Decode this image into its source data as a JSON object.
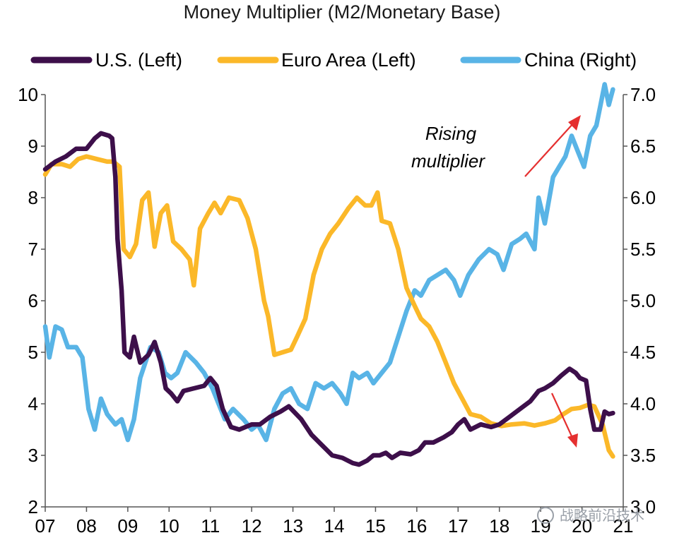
{
  "chart_data": {
    "type": "line",
    "title": "Money Multiplier (M2/Monetary Base)",
    "x_tick_labels": [
      "07",
      "08",
      "09",
      "10",
      "11",
      "12",
      "13",
      "14",
      "15",
      "16",
      "17",
      "18",
      "19",
      "20",
      "21"
    ],
    "x_range": [
      2007,
      2021
    ],
    "left_axis": {
      "range": [
        2,
        10
      ],
      "ticks": [
        "2",
        "3",
        "4",
        "5",
        "6",
        "7",
        "8",
        "9",
        "10"
      ]
    },
    "right_axis": {
      "range": [
        3.0,
        7.0
      ],
      "ticks": [
        "3.0",
        "3.5",
        "4.0",
        "4.5",
        "5.0",
        "5.5",
        "6.0",
        "6.5",
        "7.0"
      ]
    },
    "series": [
      {
        "name": "U.S. (Left)",
        "axis": "left",
        "color": "#3d0f4a",
        "points": [
          [
            2007.0,
            8.55
          ],
          [
            2007.25,
            8.7
          ],
          [
            2007.5,
            8.8
          ],
          [
            2007.75,
            8.95
          ],
          [
            2008.0,
            8.95
          ],
          [
            2008.2,
            9.15
          ],
          [
            2008.35,
            9.25
          ],
          [
            2008.55,
            9.2
          ],
          [
            2008.62,
            9.15
          ],
          [
            2008.7,
            8.4
          ],
          [
            2008.75,
            7.2
          ],
          [
            2008.85,
            6.2
          ],
          [
            2008.92,
            5.0
          ],
          [
            2009.05,
            4.9
          ],
          [
            2009.15,
            5.3
          ],
          [
            2009.3,
            4.8
          ],
          [
            2009.5,
            4.95
          ],
          [
            2009.65,
            5.2
          ],
          [
            2009.8,
            4.8
          ],
          [
            2009.92,
            4.3
          ],
          [
            2010.05,
            4.2
          ],
          [
            2010.2,
            4.05
          ],
          [
            2010.35,
            4.25
          ],
          [
            2010.6,
            4.3
          ],
          [
            2010.85,
            4.35
          ],
          [
            2011.0,
            4.5
          ],
          [
            2011.15,
            4.35
          ],
          [
            2011.3,
            3.9
          ],
          [
            2011.5,
            3.55
          ],
          [
            2011.7,
            3.5
          ],
          [
            2012.0,
            3.6
          ],
          [
            2012.2,
            3.6
          ],
          [
            2012.45,
            3.75
          ],
          [
            2012.7,
            3.85
          ],
          [
            2012.9,
            3.95
          ],
          [
            2013.2,
            3.7
          ],
          [
            2013.45,
            3.4
          ],
          [
            2013.7,
            3.2
          ],
          [
            2013.95,
            3.0
          ],
          [
            2014.2,
            2.95
          ],
          [
            2014.45,
            2.85
          ],
          [
            2014.6,
            2.82
          ],
          [
            2014.8,
            2.9
          ],
          [
            2014.95,
            3.0
          ],
          [
            2015.1,
            3.0
          ],
          [
            2015.25,
            3.05
          ],
          [
            2015.4,
            2.95
          ],
          [
            2015.6,
            3.05
          ],
          [
            2015.85,
            3.02
          ],
          [
            2016.05,
            3.1
          ],
          [
            2016.2,
            3.25
          ],
          [
            2016.4,
            3.25
          ],
          [
            2016.65,
            3.35
          ],
          [
            2016.85,
            3.45
          ],
          [
            2017.0,
            3.6
          ],
          [
            2017.15,
            3.7
          ],
          [
            2017.3,
            3.5
          ],
          [
            2017.55,
            3.6
          ],
          [
            2017.8,
            3.55
          ],
          [
            2018.0,
            3.6
          ],
          [
            2018.25,
            3.75
          ],
          [
            2018.5,
            3.9
          ],
          [
            2018.75,
            4.05
          ],
          [
            2018.95,
            4.25
          ],
          [
            2019.1,
            4.3
          ],
          [
            2019.3,
            4.4
          ],
          [
            2019.5,
            4.55
          ],
          [
            2019.7,
            4.68
          ],
          [
            2019.85,
            4.6
          ],
          [
            2019.95,
            4.5
          ],
          [
            2020.1,
            4.45
          ],
          [
            2020.2,
            3.9
          ],
          [
            2020.3,
            3.5
          ],
          [
            2020.45,
            3.5
          ],
          [
            2020.55,
            3.85
          ],
          [
            2020.65,
            3.8
          ],
          [
            2020.75,
            3.82
          ]
        ]
      },
      {
        "name": "Euro Area (Left)",
        "axis": "left",
        "color": "#fbb829",
        "points": [
          [
            2007.0,
            8.45
          ],
          [
            2007.15,
            8.65
          ],
          [
            2007.4,
            8.65
          ],
          [
            2007.6,
            8.6
          ],
          [
            2007.8,
            8.75
          ],
          [
            2008.0,
            8.8
          ],
          [
            2008.25,
            8.75
          ],
          [
            2008.5,
            8.7
          ],
          [
            2008.65,
            8.7
          ],
          [
            2008.8,
            8.6
          ],
          [
            2008.9,
            7.0
          ],
          [
            2009.05,
            6.85
          ],
          [
            2009.2,
            7.1
          ],
          [
            2009.35,
            7.95
          ],
          [
            2009.5,
            8.1
          ],
          [
            2009.65,
            7.05
          ],
          [
            2009.8,
            7.7
          ],
          [
            2009.95,
            7.85
          ],
          [
            2010.1,
            7.15
          ],
          [
            2010.3,
            7.0
          ],
          [
            2010.5,
            6.8
          ],
          [
            2010.6,
            6.3
          ],
          [
            2010.75,
            7.4
          ],
          [
            2010.95,
            7.7
          ],
          [
            2011.1,
            7.9
          ],
          [
            2011.25,
            7.7
          ],
          [
            2011.45,
            8.0
          ],
          [
            2011.7,
            7.95
          ],
          [
            2011.9,
            7.6
          ],
          [
            2012.1,
            7.0
          ],
          [
            2012.3,
            6.0
          ],
          [
            2012.4,
            5.7
          ],
          [
            2012.55,
            4.95
          ],
          [
            2012.75,
            5.0
          ],
          [
            2012.95,
            5.05
          ],
          [
            2013.1,
            5.3
          ],
          [
            2013.3,
            5.65
          ],
          [
            2013.5,
            6.5
          ],
          [
            2013.7,
            7.0
          ],
          [
            2013.9,
            7.3
          ],
          [
            2014.1,
            7.5
          ],
          [
            2014.35,
            7.8
          ],
          [
            2014.55,
            8.0
          ],
          [
            2014.75,
            7.85
          ],
          [
            2014.9,
            7.85
          ],
          [
            2015.05,
            8.1
          ],
          [
            2015.15,
            7.55
          ],
          [
            2015.35,
            7.5
          ],
          [
            2015.55,
            7.0
          ],
          [
            2015.75,
            6.25
          ],
          [
            2015.95,
            5.9
          ],
          [
            2016.1,
            5.65
          ],
          [
            2016.3,
            5.5
          ],
          [
            2016.5,
            5.2
          ],
          [
            2016.7,
            4.8
          ],
          [
            2016.9,
            4.4
          ],
          [
            2017.1,
            4.1
          ],
          [
            2017.3,
            3.8
          ],
          [
            2017.55,
            3.75
          ],
          [
            2017.8,
            3.62
          ],
          [
            2018.05,
            3.57
          ],
          [
            2018.3,
            3.6
          ],
          [
            2018.6,
            3.62
          ],
          [
            2018.85,
            3.58
          ],
          [
            2019.1,
            3.62
          ],
          [
            2019.35,
            3.68
          ],
          [
            2019.55,
            3.8
          ],
          [
            2019.75,
            3.9
          ],
          [
            2019.95,
            3.92
          ],
          [
            2020.15,
            3.98
          ],
          [
            2020.3,
            3.95
          ],
          [
            2020.5,
            3.6
          ],
          [
            2020.65,
            3.1
          ],
          [
            2020.75,
            2.98
          ]
        ]
      },
      {
        "name": "China (Right)",
        "axis": "right",
        "color": "#59b4e6",
        "points": [
          [
            2007.0,
            4.75
          ],
          [
            2007.1,
            4.45
          ],
          [
            2007.25,
            4.75
          ],
          [
            2007.4,
            4.72
          ],
          [
            2007.55,
            4.55
          ],
          [
            2007.75,
            4.55
          ],
          [
            2007.9,
            4.45
          ],
          [
            2008.05,
            3.95
          ],
          [
            2008.2,
            3.75
          ],
          [
            2008.35,
            4.05
          ],
          [
            2008.5,
            3.9
          ],
          [
            2008.7,
            3.8
          ],
          [
            2008.85,
            3.85
          ],
          [
            2009.0,
            3.65
          ],
          [
            2009.15,
            3.85
          ],
          [
            2009.3,
            4.25
          ],
          [
            2009.55,
            4.55
          ],
          [
            2009.75,
            4.5
          ],
          [
            2009.9,
            4.3
          ],
          [
            2010.05,
            4.25
          ],
          [
            2010.2,
            4.3
          ],
          [
            2010.4,
            4.5
          ],
          [
            2010.65,
            4.4
          ],
          [
            2010.85,
            4.3
          ],
          [
            2011.05,
            4.15
          ],
          [
            2011.2,
            4.0
          ],
          [
            2011.35,
            3.85
          ],
          [
            2011.55,
            3.95
          ],
          [
            2011.8,
            3.85
          ],
          [
            2012.0,
            3.75
          ],
          [
            2012.15,
            3.8
          ],
          [
            2012.35,
            3.65
          ],
          [
            2012.55,
            3.95
          ],
          [
            2012.75,
            4.1
          ],
          [
            2012.95,
            4.15
          ],
          [
            2013.15,
            4.0
          ],
          [
            2013.35,
            3.95
          ],
          [
            2013.55,
            4.2
          ],
          [
            2013.75,
            4.15
          ],
          [
            2013.95,
            4.2
          ],
          [
            2014.15,
            4.1
          ],
          [
            2014.3,
            4.0
          ],
          [
            2014.45,
            4.3
          ],
          [
            2014.6,
            4.25
          ],
          [
            2014.8,
            4.3
          ],
          [
            2014.95,
            4.2
          ],
          [
            2015.15,
            4.3
          ],
          [
            2015.35,
            4.4
          ],
          [
            2015.55,
            4.65
          ],
          [
            2015.75,
            4.9
          ],
          [
            2015.95,
            5.1
          ],
          [
            2016.1,
            5.05
          ],
          [
            2016.3,
            5.2
          ],
          [
            2016.5,
            5.25
          ],
          [
            2016.7,
            5.3
          ],
          [
            2016.9,
            5.2
          ],
          [
            2017.05,
            5.05
          ],
          [
            2017.25,
            5.25
          ],
          [
            2017.5,
            5.4
          ],
          [
            2017.75,
            5.5
          ],
          [
            2017.95,
            5.45
          ],
          [
            2018.1,
            5.3
          ],
          [
            2018.3,
            5.55
          ],
          [
            2018.5,
            5.6
          ],
          [
            2018.65,
            5.65
          ],
          [
            2018.85,
            5.5
          ],
          [
            2018.95,
            6.0
          ],
          [
            2019.1,
            5.75
          ],
          [
            2019.3,
            6.2
          ],
          [
            2019.45,
            6.3
          ],
          [
            2019.6,
            6.4
          ],
          [
            2019.75,
            6.6
          ],
          [
            2019.9,
            6.45
          ],
          [
            2020.05,
            6.3
          ],
          [
            2020.2,
            6.6
          ],
          [
            2020.35,
            6.7
          ],
          [
            2020.45,
            6.9
          ],
          [
            2020.55,
            7.1
          ],
          [
            2020.65,
            6.9
          ],
          [
            2020.75,
            7.05
          ]
        ]
      }
    ],
    "annotation": [
      "Rising",
      "multiplier"
    ],
    "watermark": "战略前沿技术"
  }
}
